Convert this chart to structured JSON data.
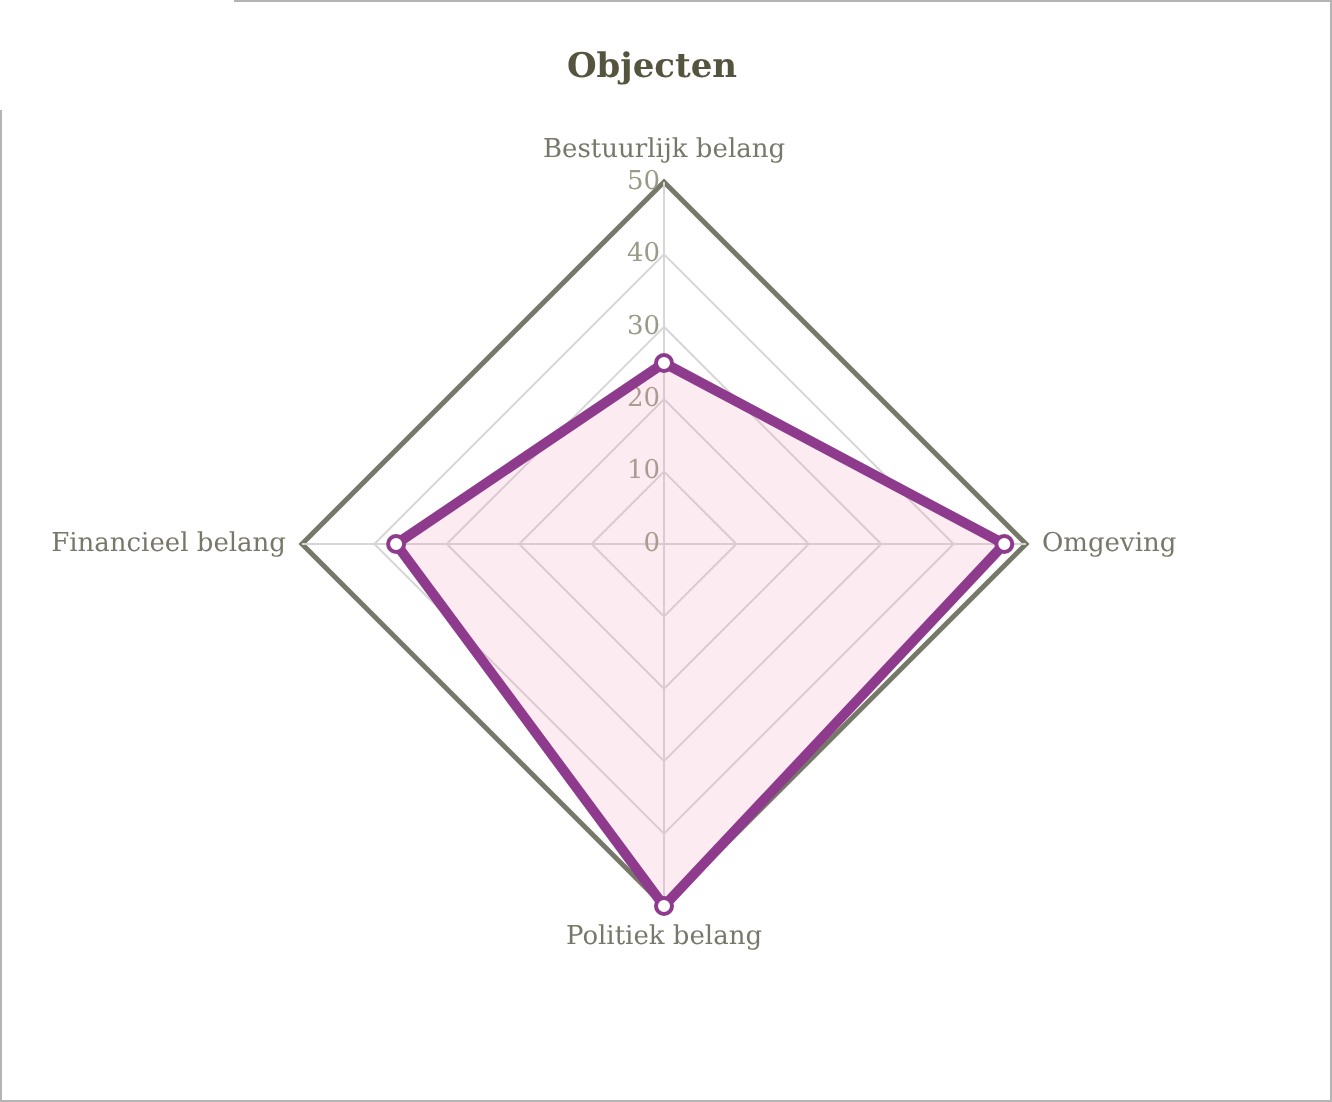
{
  "chart_data": {
    "type": "radar",
    "title": "Objecten",
    "categories": [
      "Bestuurlijk belang",
      "Omgeving",
      "Politiek belang",
      "Financieel belang"
    ],
    "series": [
      {
        "color": "#8e3b8e",
        "values": [
          25,
          47,
          50,
          37
        ]
      }
    ],
    "ylim": [
      0,
      50
    ],
    "yticks": [
      0,
      10,
      20,
      30,
      40,
      50
    ],
    "grid": true,
    "legend": false,
    "marker": "circle",
    "line_style": "solid"
  }
}
